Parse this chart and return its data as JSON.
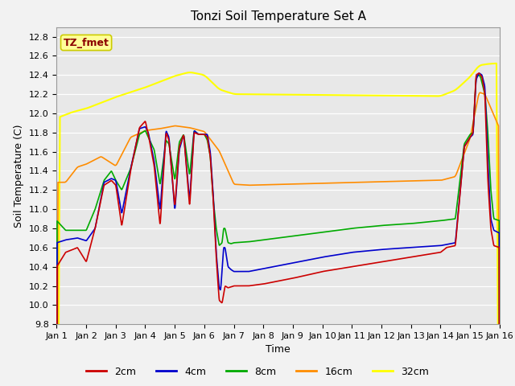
{
  "title": "Tonzi Soil Temperature Set A",
  "xlabel": "Time",
  "ylabel": "Soil Temperature (C)",
  "annotation": "TZ_fmet",
  "annotation_color": "#8B0000",
  "annotation_bg": "#FFFF99",
  "annotation_border": "#CCCC00",
  "ylim": [
    9.8,
    12.9
  ],
  "xlim": [
    0,
    15
  ],
  "xtick_labels": [
    "Jan 1",
    "Jan 2",
    "Jan 3",
    "Jan 4",
    "Jan 5",
    "Jan 6",
    "Jan 7",
    "Jan 8",
    "Jan 9",
    "Jan 10",
    "Jan 11",
    "Jan 12",
    "Jan 13",
    "Jan 14",
    "Jan 15",
    "Jan 16"
  ],
  "bg_color": "#E8E8E8",
  "grid_color": "#FFFFFF",
  "line_colors": {
    "2cm": "#CC0000",
    "4cm": "#0000CC",
    "8cm": "#00AA00",
    "16cm": "#FF8C00",
    "32cm": "#FFFF00"
  },
  "line_widths": {
    "2cm": 1.2,
    "4cm": 1.2,
    "8cm": 1.2,
    "16cm": 1.2,
    "32cm": 1.5
  },
  "legend_labels": [
    "2cm",
    "4cm",
    "8cm",
    "16cm",
    "32cm"
  ],
  "title_fontsize": 11,
  "label_fontsize": 9,
  "tick_fontsize": 8,
  "legend_fontsize": 9
}
